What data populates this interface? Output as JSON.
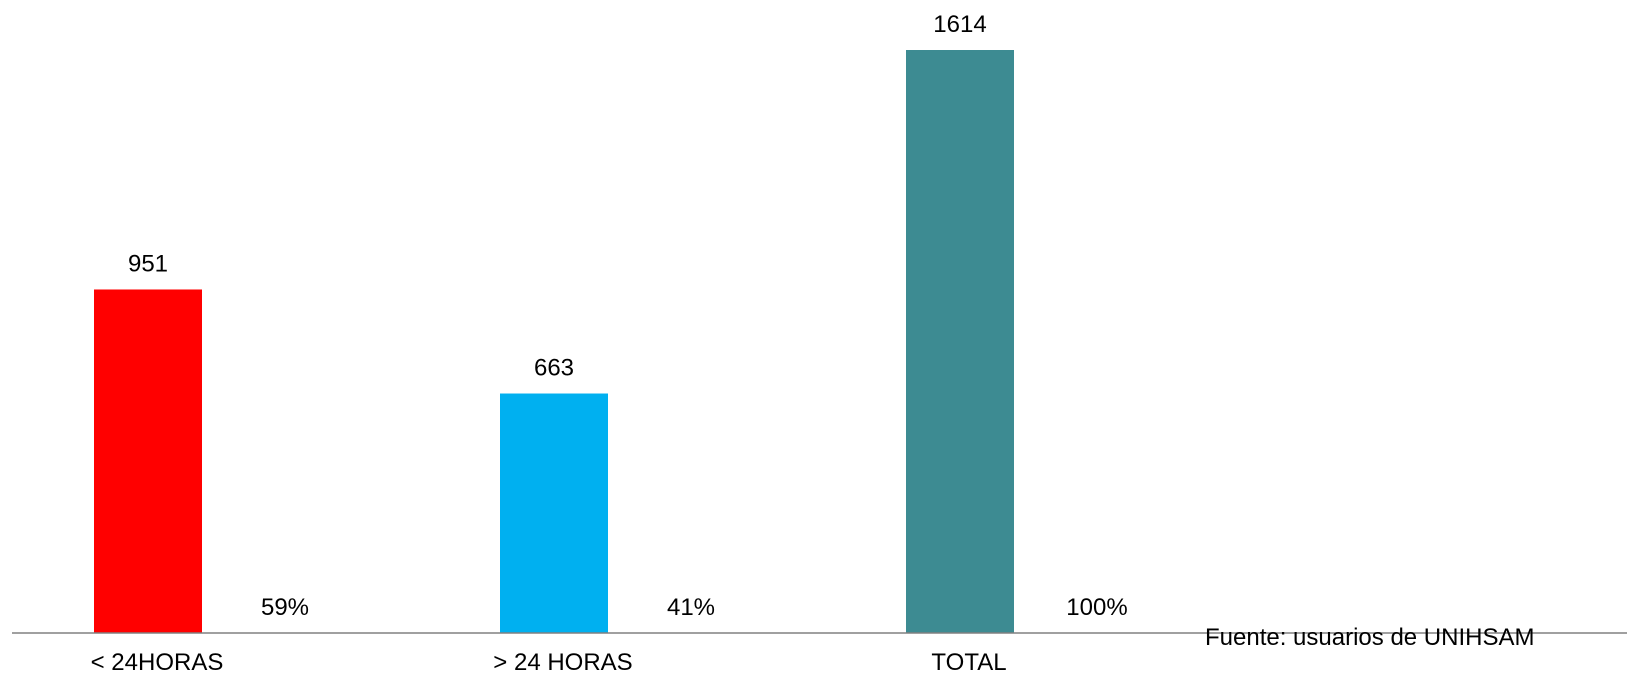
{
  "chart_data": {
    "type": "bar",
    "title": "",
    "xlabel": "",
    "ylabel": "",
    "ylim": [
      0,
      1614
    ],
    "grid": false,
    "legend": "none",
    "categories": [
      "< 24HORAS",
      ">  24 HORAS",
      "TOTAL"
    ],
    "values": [
      951,
      663,
      1614
    ],
    "value_labels": [
      "951",
      "663",
      "1614"
    ],
    "percent_labels": [
      "59%",
      "41%",
      "100%"
    ],
    "colors": [
      "#ff0000",
      "#00b0f0",
      "#3d8b92"
    ]
  },
  "source_note": "Fuente: usuarios de UNIHSAM"
}
